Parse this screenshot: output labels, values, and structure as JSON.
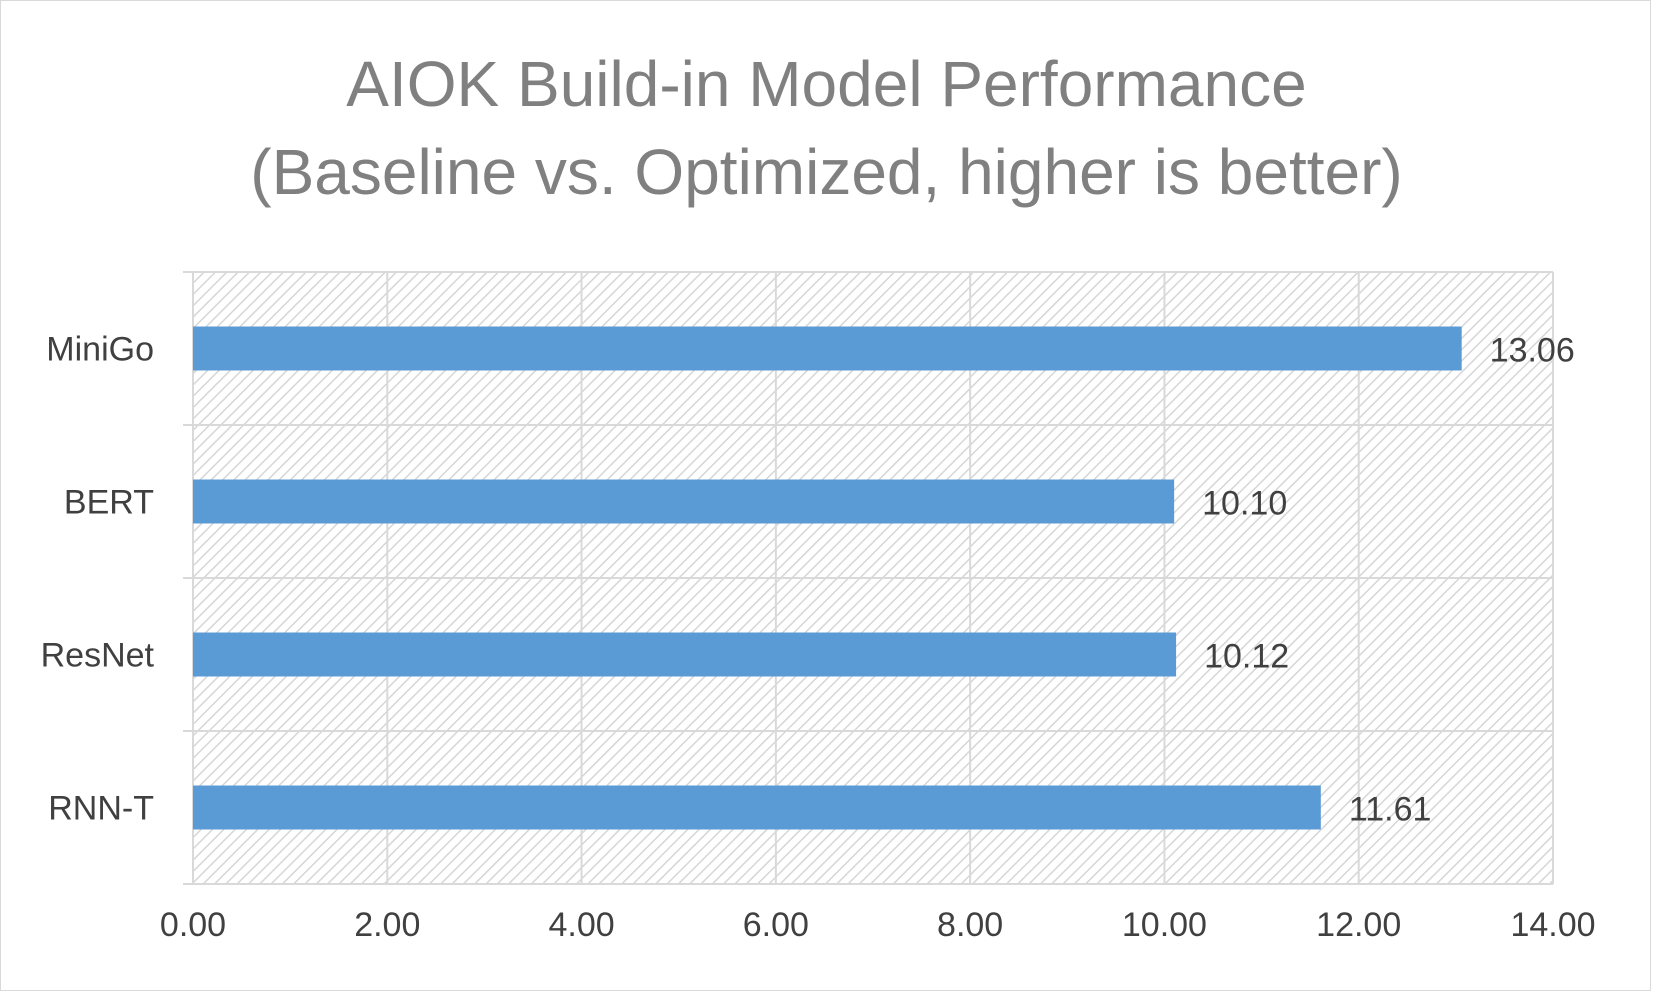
{
  "chart_data": {
    "type": "bar",
    "orientation": "horizontal",
    "title_lines": [
      "AIOK Build-in Model Performance",
      "(Baseline vs. Optimized, higher is better)"
    ],
    "categories": [
      "MiniGo",
      "BERT",
      "ResNet",
      "RNN-T"
    ],
    "values": [
      13.06,
      10.1,
      10.12,
      11.61
    ],
    "data_labels": [
      "13.06",
      "10.10",
      "10.12",
      "11.61"
    ],
    "xlim": [
      0,
      14
    ],
    "xticks": [
      0,
      2,
      4,
      6,
      8,
      10,
      12,
      14
    ],
    "xtick_labels": [
      "0.00",
      "2.00",
      "4.00",
      "6.00",
      "8.00",
      "10.00",
      "12.00",
      "14.00"
    ],
    "xlabel": "",
    "ylabel": "",
    "grid": true,
    "plot_background": "diagonal-hatch",
    "legend": "none",
    "colors": {
      "bar": "#5b9bd5",
      "grid": "#d9d9d9",
      "hatch": "#d6d6d6",
      "text": "#404040",
      "title": "#808080"
    }
  }
}
